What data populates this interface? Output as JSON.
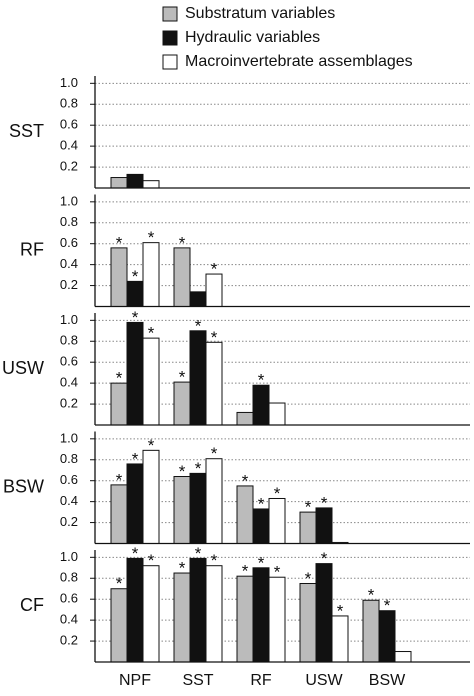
{
  "chart_data": {
    "type": "bar",
    "categories": [
      "NPF",
      "SST",
      "RF",
      "USW",
      "BSW"
    ],
    "series": [
      {
        "name": "Substratum variables",
        "color": "#bbbbbb"
      },
      {
        "name": "Hydraulic variables",
        "color": "#111111"
      },
      {
        "name": "Macroinvertebrate assemblages",
        "color": "#ffffff"
      }
    ],
    "ylim": [
      0,
      1.07
    ],
    "yticks": [
      0.2,
      0.4,
      0.6,
      0.8,
      {
        "value": 1,
        "label": "1.0"
      }
    ],
    "grid": true,
    "panels": [
      {
        "label": "SST",
        "series": [
          {
            "values": [
              0.1,
              null,
              null,
              null,
              null
            ],
            "markers": [
              null,
              null,
              null,
              null,
              null
            ]
          },
          {
            "values": [
              0.13,
              null,
              null,
              null,
              null
            ],
            "markers": [
              null,
              null,
              null,
              null,
              null
            ]
          },
          {
            "values": [
              0.07,
              null,
              null,
              null,
              null
            ],
            "markers": [
              null,
              null,
              null,
              null,
              null
            ]
          }
        ]
      },
      {
        "label": "RF",
        "series": [
          {
            "values": [
              0.56,
              0.56,
              null,
              null,
              null
            ],
            "markers": [
              "*",
              "*",
              null,
              null,
              null
            ]
          },
          {
            "values": [
              0.24,
              0.14,
              null,
              null,
              null
            ],
            "markers": [
              "*",
              null,
              null,
              null,
              null
            ]
          },
          {
            "values": [
              0.61,
              0.31,
              null,
              null,
              null
            ],
            "markers": [
              "*",
              "*",
              null,
              null,
              null
            ]
          }
        ]
      },
      {
        "label": "USW",
        "series": [
          {
            "values": [
              0.4,
              0.41,
              0.12,
              null,
              null
            ],
            "markers": [
              "*",
              "*",
              null,
              null,
              null
            ]
          },
          {
            "values": [
              0.98,
              0.9,
              0.38,
              null,
              null
            ],
            "markers": [
              "*",
              "*",
              "*",
              null,
              null
            ]
          },
          {
            "values": [
              0.83,
              0.79,
              0.21,
              null,
              null
            ],
            "markers": [
              "*",
              "*",
              null,
              null,
              null
            ]
          }
        ]
      },
      {
        "label": "BSW",
        "series": [
          {
            "values": [
              0.56,
              0.64,
              0.55,
              0.3,
              null
            ],
            "markers": [
              "*",
              "*",
              "*",
              "*",
              null
            ]
          },
          {
            "values": [
              0.76,
              0.67,
              0.33,
              0.34,
              null
            ],
            "markers": [
              "*",
              "*",
              "*",
              "*",
              null
            ]
          },
          {
            "values": [
              0.89,
              0.81,
              0.43,
              0.01,
              null
            ],
            "markers": [
              "*",
              "*",
              "*",
              null,
              null
            ]
          }
        ]
      },
      {
        "label": "CF",
        "series": [
          {
            "values": [
              0.7,
              0.85,
              0.82,
              0.75,
              0.59
            ],
            "markers": [
              "*",
              "*",
              "*",
              "*",
              "*"
            ]
          },
          {
            "values": [
              0.99,
              0.99,
              0.9,
              0.94,
              0.49
            ],
            "markers": [
              "*",
              "*",
              "*",
              "*",
              "*"
            ]
          },
          {
            "values": [
              0.92,
              0.92,
              0.81,
              0.44,
              0.1
            ],
            "markers": [
              "*",
              "*",
              "*",
              "*",
              null
            ]
          }
        ]
      }
    ]
  }
}
